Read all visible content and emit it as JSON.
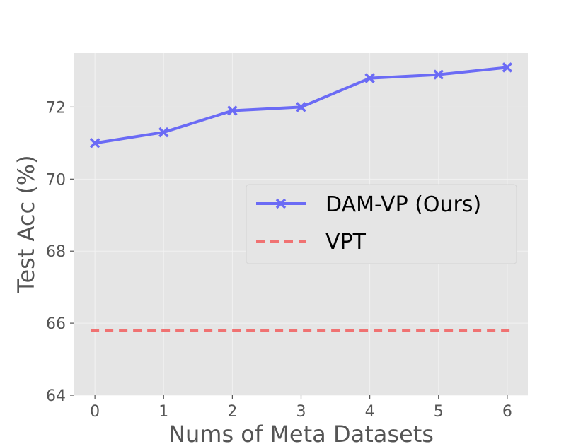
{
  "chart_data": {
    "type": "line",
    "title": "",
    "xlabel": "Nums of Meta Datasets",
    "ylabel": "Test Acc (%)",
    "x": [
      0,
      1,
      2,
      3,
      4,
      5,
      6
    ],
    "x_ticks": [
      "0",
      "1",
      "2",
      "3",
      "4",
      "5",
      "6"
    ],
    "xlim": [
      -0.3,
      6.3
    ],
    "y_ticks": [
      "64",
      "66",
      "68",
      "70",
      "72"
    ],
    "ylim": [
      64,
      73.5
    ],
    "grid": true,
    "legend_position": "center-right",
    "series": [
      {
        "name": "DAM-VP (Ours)",
        "values": [
          71.0,
          71.3,
          71.9,
          72.0,
          72.8,
          72.9,
          73.1
        ],
        "color": "#6B6BF5",
        "line_style": "solid",
        "marker": "x"
      },
      {
        "name": "VPT",
        "values": [
          65.8,
          65.8,
          65.8,
          65.8,
          65.8,
          65.8,
          65.8
        ],
        "color": "#F07272",
        "line_style": "dashed",
        "marker": "none"
      }
    ]
  }
}
